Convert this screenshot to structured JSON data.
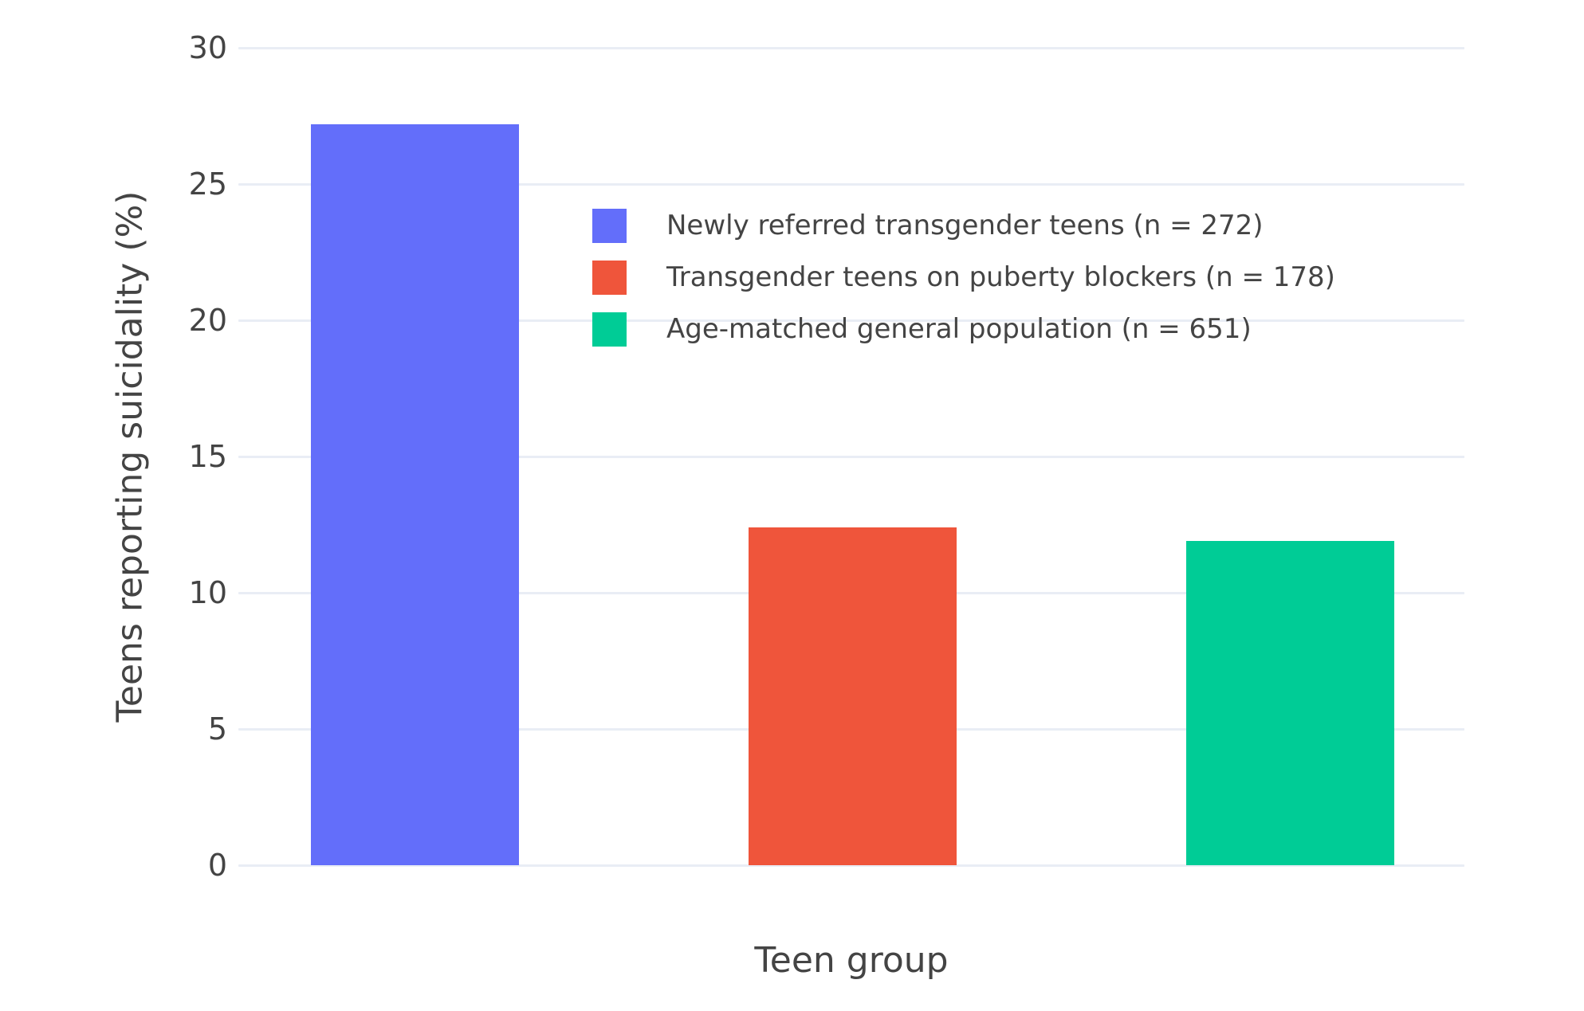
{
  "chart_data": {
    "type": "bar",
    "title": "",
    "xlabel": "Teen group",
    "ylabel": "Teens reporting suicidality (%)",
    "ylim": [
      0,
      30
    ],
    "yticks": [
      0,
      5,
      10,
      15,
      20,
      25,
      30
    ],
    "grid": true,
    "legend_position": "inside top-left of plot area, no border",
    "categories": [
      "Newly referred transgender teens",
      "Transgender teens on puberty blockers",
      "Age-matched general population"
    ],
    "series": [
      {
        "name": "Newly referred transgender teens (n = 272)",
        "value": 27.2,
        "color": "#636efa"
      },
      {
        "name": "Transgender teens on puberty blockers (n = 178)",
        "value": 12.4,
        "color": "#ef553b"
      },
      {
        "name": "Age-matched general population (n = 651)",
        "value": 11.9,
        "color": "#00cc96"
      }
    ]
  },
  "colors": {
    "background": "#ffffff",
    "gridline": "#e9edf5",
    "text": "#444444"
  }
}
